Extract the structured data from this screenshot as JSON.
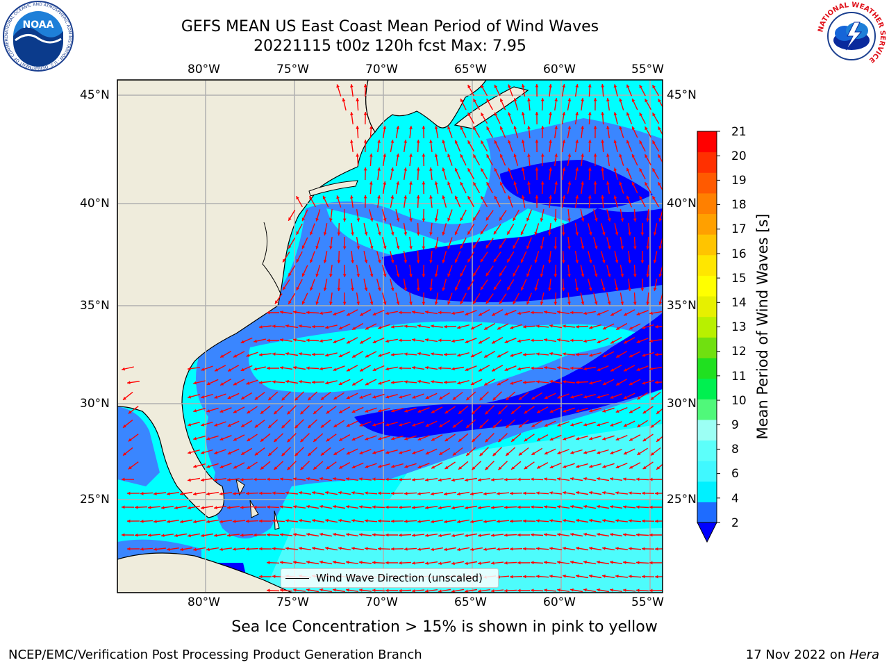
{
  "header": {
    "title_line1": "GEFS MEAN US East Coast Mean Period of Wind Waves",
    "title_line2": "20221115 t00z 120h fcst   Max: 7.95"
  },
  "logos": {
    "noaa_text": "NOAA",
    "noaa_ring_text": "NATIONAL OCEANIC AND ATMOSPHERIC ADMINISTRATION · U.S. DEPARTMENT OF COMMERCE",
    "nws_ring_text": "NATIONAL WEATHER SERVICE"
  },
  "map": {
    "lon_labels": [
      "80°W",
      "75°W",
      "70°W",
      "65°W",
      "60°W",
      "55°W"
    ],
    "lat_labels": [
      "45°N",
      "40°N",
      "35°N",
      "30°N",
      "25°N"
    ],
    "legend_text": "Wind Wave Direction (unscaled)",
    "colors": {
      "land": "#efecdc",
      "coast": "#000000",
      "grid": "#b0b0b0",
      "arrow": "#ff0000",
      "band_2_4": "#3a86ff",
      "band_4_6": "#00ffff",
      "band_6_8": "#4dfcfc",
      "below_2": "#0000ff"
    }
  },
  "colorbar": {
    "title": "Mean Period of Wind Waves [s]",
    "ticks": [
      "21",
      "20",
      "19",
      "18",
      "17",
      "16",
      "15",
      "14",
      "13",
      "12",
      "11",
      "10",
      "9",
      "8",
      "6",
      "4",
      "2"
    ],
    "colors_bottom_to_top": [
      "#1e6cff",
      "#00f0ff",
      "#40f8ff",
      "#5cfffa",
      "#9cfff4",
      "#50f87a",
      "#00f050",
      "#20e020",
      "#70e010",
      "#b8f000",
      "#e6f000",
      "#ffff00",
      "#ffe600",
      "#ffc400",
      "#ffa000",
      "#ff8000",
      "#ff5a00",
      "#ff3000",
      "#ff0000"
    ],
    "extend_color": "#0000ff"
  },
  "footer": {
    "ice_note": "Sea Ice Concentration > 15% is shown in pink to yellow",
    "left": "NCEP/EMC/Verification Post Processing Product Generation Branch",
    "right_date": "17 Nov 2022 on ",
    "right_machine": "Hera"
  }
}
